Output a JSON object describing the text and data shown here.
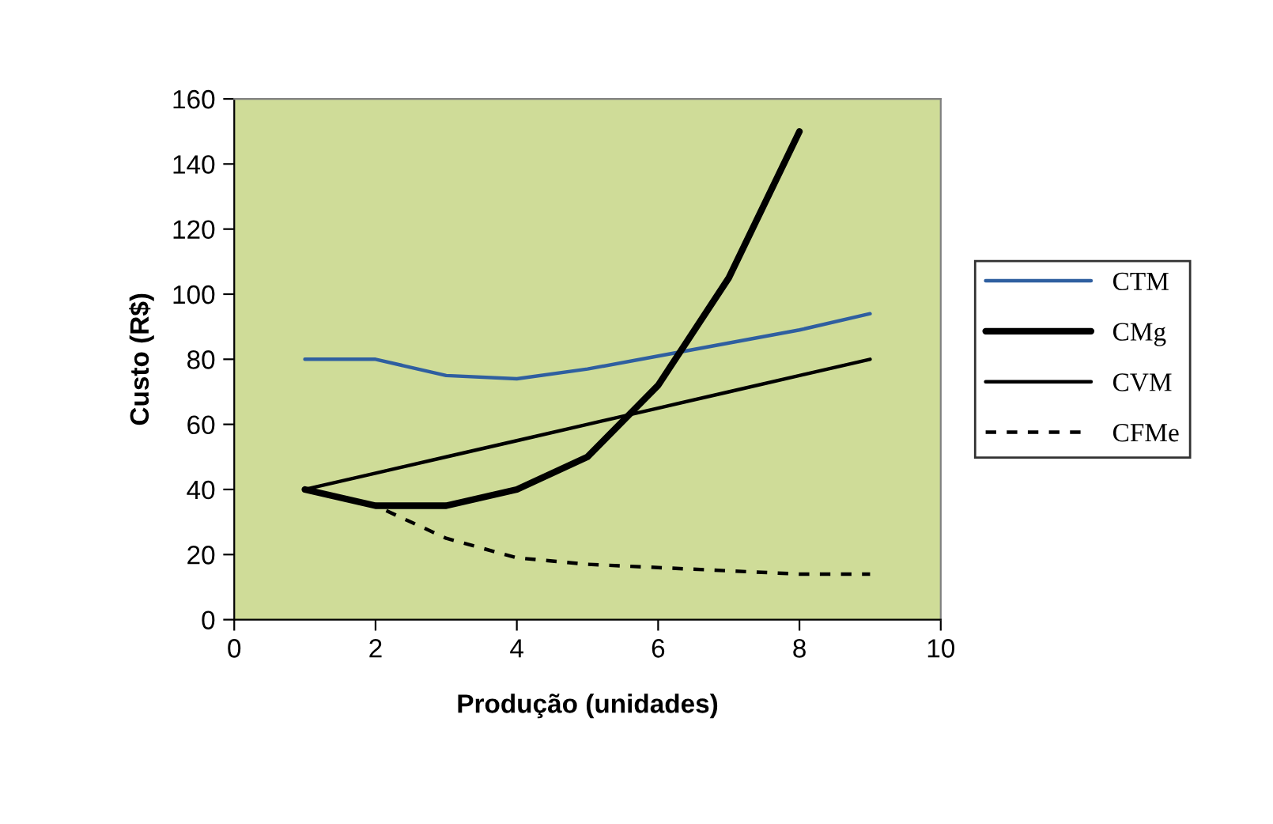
{
  "chart_data": {
    "type": "line",
    "xlabel": "Produção (unidades)",
    "ylabel": "Custo (R$)",
    "x": [
      1,
      2,
      3,
      4,
      5,
      6,
      7,
      8,
      9
    ],
    "xlim": [
      0,
      10
    ],
    "xticks": [
      0,
      2,
      4,
      6,
      8,
      10
    ],
    "ylim": [
      0,
      160
    ],
    "yticks": [
      0,
      20,
      40,
      60,
      80,
      100,
      120,
      140,
      160
    ],
    "grid": false,
    "legend": "right",
    "marker": "none",
    "series": [
      {
        "name": "CTM",
        "color": "#2f5fa0",
        "line_style": "solid",
        "values": [
          80,
          80,
          75,
          74,
          77,
          81,
          85,
          89,
          94
        ]
      },
      {
        "name": "CMg",
        "color": "#000000",
        "line_style": "solid",
        "x": [
          1,
          2,
          3,
          4,
          5,
          6,
          7,
          8
        ],
        "values": [
          40,
          35,
          35,
          40,
          50,
          72,
          105,
          150
        ]
      },
      {
        "name": "CVM",
        "color": "#000000",
        "line_style": "solid",
        "values": [
          40,
          45,
          50,
          55,
          60,
          65,
          70,
          75,
          80
        ]
      },
      {
        "name": "CFMe",
        "color": "#000000",
        "line_style": "dashed",
        "values": [
          40,
          35,
          25,
          19,
          17,
          16,
          15,
          14,
          14
        ]
      }
    ]
  }
}
